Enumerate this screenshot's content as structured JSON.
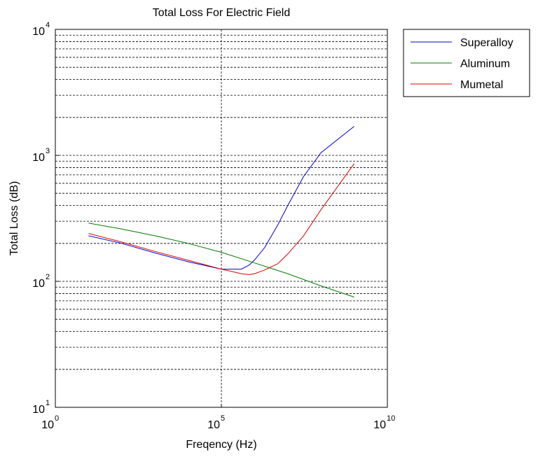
{
  "chart_data": {
    "type": "line",
    "title": "Total Loss For Electric Field",
    "xlabel": "Freqency (Hz)",
    "ylabel": "Total Loss (dB)",
    "xscale": "log",
    "yscale": "log",
    "xlim": [
      1,
      10000000000
    ],
    "ylim": [
      10,
      10000
    ],
    "x_ticks": [
      {
        "base": "10",
        "exp": "0"
      },
      {
        "base": "10",
        "exp": "5"
      },
      {
        "base": "10",
        "exp": "10"
      }
    ],
    "y_ticks": [
      {
        "base": "10",
        "exp": "1"
      },
      {
        "base": "10",
        "exp": "2"
      },
      {
        "base": "10",
        "exp": "3"
      },
      {
        "base": "10",
        "exp": "4"
      }
    ],
    "grid": "dashed (major x, major and minor y)",
    "legend_position": "outside top-right",
    "series": [
      {
        "name": "Superalloy",
        "color": "#0000cc",
        "x": [
          10,
          100,
          1000,
          10000,
          100000,
          200000,
          400000,
          700000,
          1000000,
          2000000,
          5000000,
          10000000,
          30000000,
          100000000,
          1000000000
        ],
        "y": [
          230,
          200,
          168,
          143,
          125,
          125,
          125,
          135,
          148,
          185,
          280,
          400,
          680,
          1050,
          1700
        ]
      },
      {
        "name": "Aluminum",
        "color": "#007a00",
        "x": [
          10,
          100,
          1000,
          10000,
          100000,
          1000000,
          10000000,
          100000000,
          1000000000
        ],
        "y": [
          290,
          260,
          230,
          200,
          170,
          140,
          115,
          92,
          75
        ]
      },
      {
        "name": "Mumetal",
        "color": "#dd0000",
        "x": [
          10,
          100,
          1000,
          10000,
          100000,
          200000,
          400000,
          700000,
          1000000,
          2000000,
          5000000,
          10000000,
          30000000,
          100000000,
          1000000000
        ],
        "y": [
          240,
          205,
          173,
          147,
          125,
          120,
          115,
          113,
          115,
          123,
          138,
          165,
          230,
          370,
          860
        ]
      }
    ]
  }
}
